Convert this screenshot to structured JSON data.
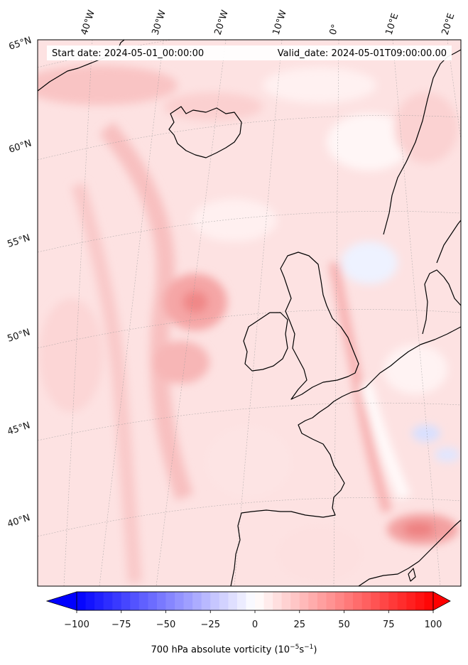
{
  "header": {
    "start_date": "Start date: 2024-05-01_00:00:00",
    "valid_date": "Valid_date: 2024-05-01T09:00:00.00"
  },
  "map": {
    "projection": "lambert conformal",
    "field": "700 hPa absolute vorticity",
    "lon_labels": [
      "40°W",
      "30°W",
      "20°W",
      "10°W",
      "0°",
      "10°E",
      "20°E"
    ],
    "lat_labels": [
      "65°N",
      "60°N",
      "55°N",
      "50°N",
      "45°N",
      "40°N"
    ],
    "features": [
      "Iceland",
      "British Isles",
      "Norway",
      "Denmark",
      "France",
      "Iberian Peninsula"
    ]
  },
  "colorbar": {
    "vmin": -100,
    "vmax": 100,
    "ticks": [
      "−100",
      "−75",
      "−50",
      "−25",
      "0",
      "25",
      "50",
      "75",
      "100"
    ],
    "label_main": "700 hPa absolute vorticity (10",
    "label_exp1": "−5",
    "label_mid": "s",
    "label_exp2": "−1",
    "label_end": ")",
    "colormap": "bwr",
    "color_low": "#0000ff",
    "color_mid": "#ffffff",
    "color_high": "#ff0000",
    "extend": "both"
  }
}
